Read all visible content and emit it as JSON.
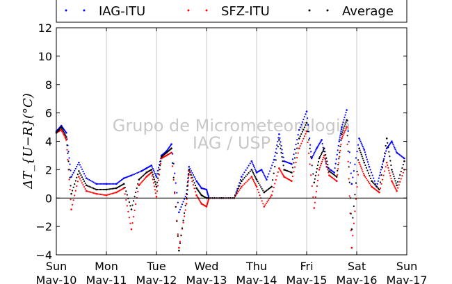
{
  "chart_data": {
    "type": "scatter",
    "ylabel": "ΔT_{U−R}(°C)",
    "ylim": [
      -4,
      12
    ],
    "yticks": [
      -4,
      -2,
      0,
      2,
      4,
      6,
      8,
      10,
      12
    ],
    "grid": "vertical-only",
    "zero_line": true,
    "legend_placement": "top",
    "x_ticks": [
      {
        "day": "Sun",
        "date": "May-10"
      },
      {
        "day": "Mon",
        "date": "May-11"
      },
      {
        "day": "Tue",
        "date": "May-12"
      },
      {
        "day": "Wed",
        "date": "May-13"
      },
      {
        "day": "Thu",
        "date": "May-14"
      },
      {
        "day": "Fri",
        "date": "May-15"
      },
      {
        "day": "Sat",
        "date": "May-16"
      },
      {
        "day": "Sun",
        "date": "May-17"
      }
    ],
    "xlim_days": [
      0,
      7
    ],
    "series": [
      {
        "name": "IAG-ITU",
        "color": "#0000ff",
        "points": [
          [
            0,
            4.7
          ],
          [
            0.1,
            5.1
          ],
          [
            0.2,
            4.6
          ],
          [
            0.3,
            1.5
          ],
          [
            0.45,
            2.5
          ],
          [
            0.6,
            1.4
          ],
          [
            0.8,
            1.0
          ],
          [
            1.0,
            1.0
          ],
          [
            1.2,
            1.0
          ],
          [
            1.35,
            1.4
          ],
          [
            1.5,
            1.6
          ],
          [
            1.7,
            1.9
          ],
          [
            1.8,
            2.1
          ],
          [
            1.9,
            2.3
          ],
          [
            2.0,
            1.5
          ],
          [
            2.1,
            3.0
          ],
          [
            2.2,
            3.3
          ],
          [
            2.3,
            3.8
          ],
          [
            2.45,
            -1.0
          ],
          [
            2.6,
            0.3
          ],
          [
            2.65,
            2.2
          ],
          [
            2.8,
            1.2
          ],
          [
            2.9,
            0.7
          ],
          [
            3.0,
            0.6
          ],
          [
            3.05,
            0
          ],
          [
            3.3,
            0
          ],
          [
            3.55,
            0
          ],
          [
            3.7,
            1.5
          ],
          [
            3.9,
            2.6
          ],
          [
            4.0,
            1.8
          ],
          [
            4.1,
            2.0
          ],
          [
            4.2,
            1.3
          ],
          [
            4.35,
            2.7
          ],
          [
            4.45,
            4.5
          ],
          [
            4.55,
            2.6
          ],
          [
            4.7,
            2.4
          ],
          [
            4.85,
            4.8
          ],
          [
            5.0,
            6.1
          ],
          [
            5.1,
            2.8
          ],
          [
            5.2,
            3.5
          ],
          [
            5.3,
            4.1
          ],
          [
            5.4,
            2.2
          ],
          [
            5.55,
            1.8
          ],
          [
            5.65,
            4.0
          ],
          [
            5.7,
            5.0
          ],
          [
            5.8,
            6.2
          ],
          [
            5.9,
            1.0
          ],
          [
            6.05,
            4.2
          ],
          [
            6.15,
            3.4
          ],
          [
            6.25,
            2.2
          ],
          [
            6.4,
            0.8
          ],
          [
            6.5,
            2.2
          ],
          [
            6.6,
            3.5
          ],
          [
            6.7,
            4.0
          ],
          [
            6.8,
            3.2
          ],
          [
            6.95,
            2.8
          ]
        ]
      },
      {
        "name": "SFZ-ITU",
        "color": "#ff0000",
        "points": [
          [
            0,
            4.6
          ],
          [
            0.1,
            4.8
          ],
          [
            0.2,
            4.1
          ],
          [
            0.3,
            -0.8
          ],
          [
            0.45,
            1.5
          ],
          [
            0.6,
            0.5
          ],
          [
            0.8,
            0.3
          ],
          [
            1.0,
            0.2
          ],
          [
            1.2,
            0.4
          ],
          [
            1.35,
            0.7
          ],
          [
            1.5,
            -2.2
          ],
          [
            1.65,
            0.9
          ],
          [
            1.8,
            1.5
          ],
          [
            1.9,
            1.8
          ],
          [
            2.0,
            0.1
          ],
          [
            2.1,
            2.8
          ],
          [
            2.2,
            3.0
          ],
          [
            2.3,
            3.2
          ],
          [
            2.45,
            -3.5
          ],
          [
            2.6,
            -0.4
          ],
          [
            2.65,
            1.9
          ],
          [
            2.8,
            0.2
          ],
          [
            2.9,
            -0.4
          ],
          [
            3.0,
            -0.6
          ],
          [
            3.05,
            0
          ],
          [
            3.3,
            0
          ],
          [
            3.55,
            0
          ],
          [
            3.7,
            0.8
          ],
          [
            3.9,
            1.5
          ],
          [
            4.0,
            0.8
          ],
          [
            4.15,
            -0.6
          ],
          [
            4.3,
            0.2
          ],
          [
            4.45,
            2.1
          ],
          [
            4.55,
            1.5
          ],
          [
            4.7,
            1.2
          ],
          [
            4.85,
            3.5
          ],
          [
            5.0,
            4.7
          ],
          [
            5.15,
            -0.7
          ],
          [
            5.25,
            2.0
          ],
          [
            5.35,
            3.0
          ],
          [
            5.45,
            1.6
          ],
          [
            5.6,
            1.2
          ],
          [
            5.7,
            4.2
          ],
          [
            5.8,
            5.0
          ],
          [
            5.9,
            -3.5
          ],
          [
            6.05,
            2.5
          ],
          [
            6.15,
            1.6
          ],
          [
            6.3,
            0.8
          ],
          [
            6.45,
            0.4
          ],
          [
            6.6,
            2.5
          ],
          [
            6.7,
            1.2
          ],
          [
            6.8,
            0.5
          ],
          [
            6.95,
            2.0
          ]
        ]
      },
      {
        "name": "Average",
        "color": "#000000",
        "points": [
          [
            0,
            4.6
          ],
          [
            0.1,
            5.0
          ],
          [
            0.2,
            4.3
          ],
          [
            0.3,
            0.3
          ],
          [
            0.45,
            1.9
          ],
          [
            0.6,
            0.9
          ],
          [
            0.8,
            0.6
          ],
          [
            1.0,
            0.6
          ],
          [
            1.2,
            0.7
          ],
          [
            1.35,
            1.0
          ],
          [
            1.5,
            -0.8
          ],
          [
            1.65,
            1.3
          ],
          [
            1.8,
            1.8
          ],
          [
            1.9,
            2.0
          ],
          [
            2.0,
            0.8
          ],
          [
            2.1,
            2.9
          ],
          [
            2.2,
            3.2
          ],
          [
            2.3,
            3.5
          ],
          [
            2.45,
            -3.7
          ],
          [
            2.6,
            0
          ],
          [
            2.65,
            2.0
          ],
          [
            2.8,
            0.7
          ],
          [
            2.9,
            0.2
          ],
          [
            3.0,
            0
          ],
          [
            3.05,
            0
          ],
          [
            3.3,
            0
          ],
          [
            3.55,
            0
          ],
          [
            3.7,
            1.2
          ],
          [
            3.9,
            2.0
          ],
          [
            4.0,
            1.3
          ],
          [
            4.15,
            0.4
          ],
          [
            4.3,
            0.8
          ],
          [
            4.45,
            4.1
          ],
          [
            4.55,
            2.0
          ],
          [
            4.7,
            1.8
          ],
          [
            4.85,
            4.2
          ],
          [
            5.0,
            5.3
          ],
          [
            5.15,
            1.1
          ],
          [
            5.25,
            2.8
          ],
          [
            5.35,
            3.5
          ],
          [
            5.45,
            1.9
          ],
          [
            5.6,
            1.5
          ],
          [
            5.7,
            4.5
          ],
          [
            5.8,
            5.5
          ],
          [
            5.9,
            -2.2
          ],
          [
            6.05,
            3.5
          ],
          [
            6.15,
            2.5
          ],
          [
            6.3,
            1.2
          ],
          [
            6.45,
            0.6
          ],
          [
            6.6,
            4.2
          ],
          [
            6.7,
            2.0
          ],
          [
            6.8,
            0.9
          ],
          [
            6.95,
            2.6
          ]
        ]
      }
    ],
    "watermark": [
      "Grupo de Micrometeorologia",
      "IAG / USP"
    ]
  }
}
